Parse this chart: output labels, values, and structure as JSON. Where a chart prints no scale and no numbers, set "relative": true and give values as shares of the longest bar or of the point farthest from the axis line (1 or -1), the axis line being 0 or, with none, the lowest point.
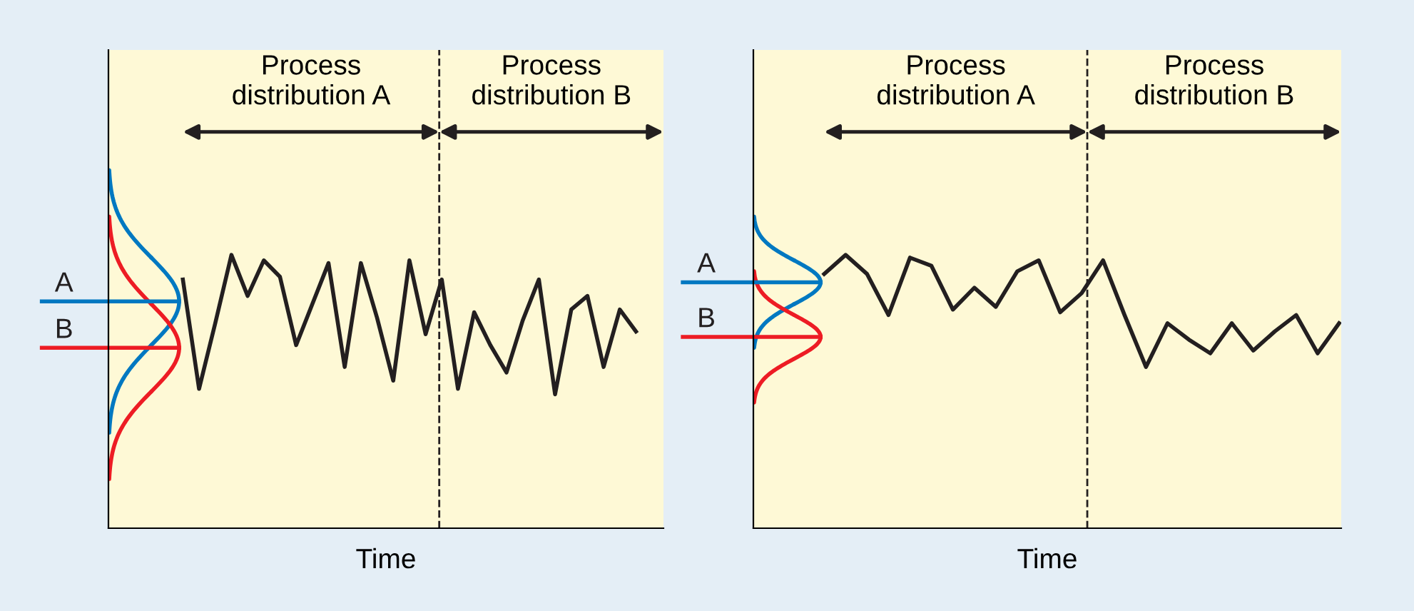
{
  "chart_data": [
    {
      "type": "line",
      "relative": true,
      "xlabel": "Time",
      "categories": [
        null,
        null,
        null,
        null,
        null,
        null,
        null,
        null,
        null,
        null,
        null,
        null,
        null,
        null,
        null,
        null,
        null,
        null,
        null,
        null,
        null,
        null,
        null,
        null,
        null,
        null,
        null,
        null,
        null
      ],
      "series": [
        {
          "color": "#231f20",
          "values": [
            0.91,
            0.51,
            0.75,
            1.0,
            0.85,
            0.98,
            0.92,
            0.67,
            0.82,
            0.97,
            0.59,
            0.97,
            0.77,
            0.54,
            0.98,
            0.71,
            0.91,
            0.51,
            0.79,
            0.67,
            0.57,
            0.76,
            0.91,
            0.49,
            0.8,
            0.85,
            0.59,
            0.8,
            0.72
          ]
        }
      ],
      "ref_lines": [
        {
          "axis": "y",
          "value": 0.83,
          "label": "A",
          "color": "#0078c1"
        },
        {
          "axis": "y",
          "value": 0.66,
          "label": "B",
          "color": "#ed1c24"
        }
      ],
      "annotations": [
        "Process\ndistribution A",
        "Process\ndistribution B"
      ],
      "marker": "none",
      "line_style": "solid",
      "tick_labels": false
    },
    {
      "type": "line",
      "relative": true,
      "xlabel": "Time",
      "categories": [
        null,
        null,
        null,
        null,
        null,
        null,
        null,
        null,
        null,
        null,
        null,
        null,
        null,
        null,
        null,
        null,
        null,
        null,
        null,
        null,
        null,
        null,
        null,
        null,
        null
      ],
      "series": [
        {
          "color": "#231f20",
          "values": [
            0.93,
            1.0,
            0.93,
            0.78,
            0.99,
            0.96,
            0.8,
            0.88,
            0.81,
            0.94,
            0.98,
            0.79,
            0.86,
            0.98,
            0.78,
            0.59,
            0.75,
            0.69,
            0.64,
            0.75,
            0.65,
            0.72,
            0.78,
            0.64,
            0.75
          ]
        }
      ],
      "ref_lines": [
        {
          "axis": "y",
          "value": 0.9,
          "label": "A",
          "color": "#0078c1"
        },
        {
          "axis": "y",
          "value": 0.7,
          "label": "B",
          "color": "#ed1c24"
        }
      ],
      "annotations": [
        "Process\ndistribution A",
        "Process\ndistribution B"
      ],
      "marker": "none",
      "line_style": "solid",
      "tick_labels": false
    }
  ]
}
